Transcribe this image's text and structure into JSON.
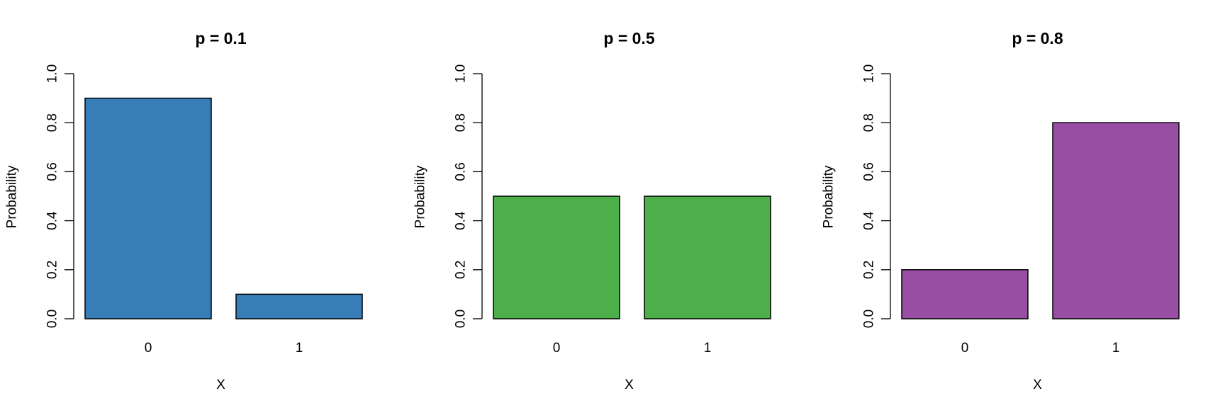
{
  "chart_data": [
    {
      "type": "bar",
      "title": "p = 0.1",
      "xlabel": "X",
      "ylabel": "Probability",
      "categories": [
        "0",
        "1"
      ],
      "values": [
        0.9,
        0.1
      ],
      "color": "#377EB8",
      "ylim": [
        0,
        1
      ],
      "yticks": [
        "0.0",
        "0.2",
        "0.4",
        "0.6",
        "0.8",
        "1.0"
      ],
      "grid": false
    },
    {
      "type": "bar",
      "title": "p = 0.5",
      "xlabel": "X",
      "ylabel": "Probability",
      "categories": [
        "0",
        "1"
      ],
      "values": [
        0.5,
        0.5
      ],
      "color": "#4DAF4A",
      "ylim": [
        0,
        1
      ],
      "yticks": [
        "0.0",
        "0.2",
        "0.4",
        "0.6",
        "0.8",
        "1.0"
      ],
      "grid": false
    },
    {
      "type": "bar",
      "title": "p = 0.8",
      "xlabel": "X",
      "ylabel": "Probability",
      "categories": [
        "0",
        "1"
      ],
      "values": [
        0.2,
        0.8
      ],
      "color": "#984EA3",
      "ylim": [
        0,
        1
      ],
      "yticks": [
        "0.0",
        "0.2",
        "0.4",
        "0.6",
        "0.8",
        "1.0"
      ],
      "grid": false
    }
  ]
}
